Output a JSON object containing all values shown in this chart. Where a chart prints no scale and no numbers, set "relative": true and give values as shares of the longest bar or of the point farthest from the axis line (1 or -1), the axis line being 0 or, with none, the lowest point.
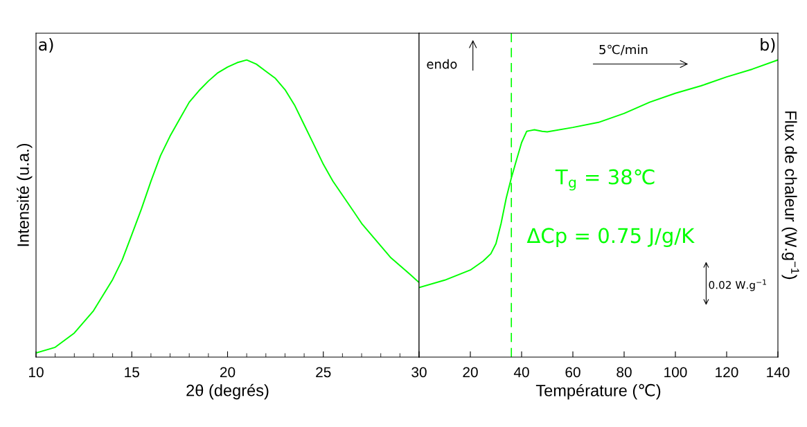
{
  "chart_data": [
    {
      "type": "line",
      "xlabel": "2θ (degrés)",
      "ylabel": "Intensité (u.a.)",
      "relative": true,
      "annotations": [
        "a)"
      ],
      "xlim": [
        10,
        30
      ],
      "xticks": [
        10,
        15,
        20,
        25,
        30
      ],
      "tick_labels": "x",
      "grid": false,
      "legend": false,
      "x": [
        10,
        11,
        12,
        13,
        14,
        14.5,
        15,
        15.5,
        16,
        16.5,
        17,
        17.5,
        18,
        18.5,
        19,
        19.5,
        20,
        20.5,
        21,
        21.5,
        22,
        22.5,
        23,
        23.5,
        24,
        24.5,
        25,
        25.5,
        26,
        26.5,
        27,
        27.5,
        28,
        28.5,
        29,
        29.5,
        30
      ],
      "series": [
        {
          "color": "#00ff00",
          "values": [
            0.014,
            0.033,
            0.081,
            0.156,
            0.261,
            0.327,
            0.412,
            0.498,
            0.592,
            0.678,
            0.744,
            0.801,
            0.858,
            0.896,
            0.929,
            0.957,
            0.976,
            0.991,
            1,
            0.986,
            0.962,
            0.938,
            0.9,
            0.848,
            0.782,
            0.716,
            0.649,
            0.592,
            0.545,
            0.498,
            0.45,
            0.412,
            0.374,
            0.336,
            0.308,
            0.28,
            0.251
          ]
        }
      ]
    },
    {
      "type": "line",
      "xlabel": "Température (℃)",
      "ylabel": "Flux de chaleur (W.g$^{−1}$)",
      "relative": true,
      "annotations": [
        "b)",
        "endo",
        "5℃/min",
        "T$_{g}$ = 38℃",
        "ΔCp = 0.75 J/g/K",
        "0.02 W.g$^{−1}$"
      ],
      "xlim": [
        0,
        140
      ],
      "xticks": [
        {
          "value": 0,
          "label": null
        },
        20,
        40,
        60,
        80,
        100,
        120,
        140
      ],
      "tick_labels": "x",
      "grid": false,
      "legend": false,
      "ref_lines": [
        {
          "axis": "x",
          "value": 36,
          "color": "#00ff00",
          "line_style": "dashed"
        }
      ],
      "x": [
        0,
        10,
        20,
        25,
        28,
        30,
        32,
        34,
        36,
        38,
        40,
        42,
        45,
        48,
        50,
        60,
        70,
        80,
        90,
        100,
        110,
        120,
        130,
        140
      ],
      "series": [
        {
          "color": "#00ff00",
          "values": [
            0.234,
            0.259,
            0.293,
            0.323,
            0.348,
            0.382,
            0.45,
            0.535,
            0.603,
            0.663,
            0.722,
            0.76,
            0.765,
            0.76,
            0.758,
            0.773,
            0.79,
            0.82,
            0.858,
            0.888,
            0.913,
            0.943,
            0.969,
            1
          ]
        }
      ]
    }
  ]
}
